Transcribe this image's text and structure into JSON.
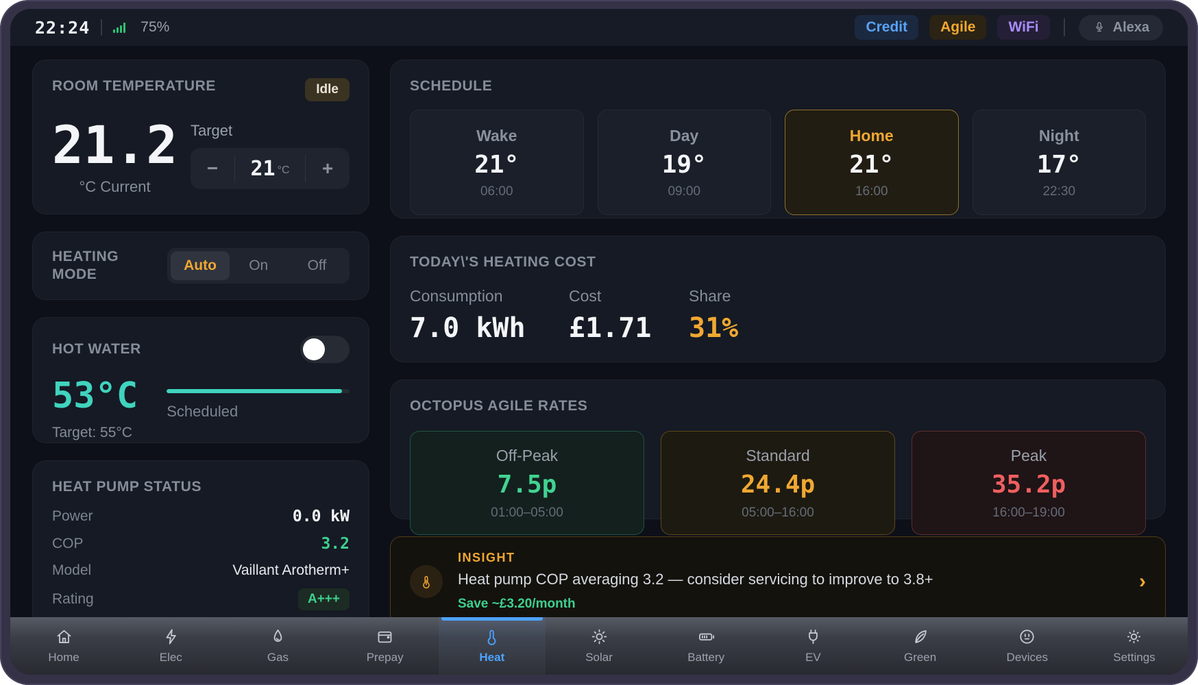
{
  "status_bar": {
    "time": "22:24",
    "battery": "75%",
    "badges": [
      {
        "label": "Credit"
      },
      {
        "label": "Agile"
      },
      {
        "label": "WiFi"
      }
    ],
    "voice_assistant": "Alexa"
  },
  "room_temperature": {
    "title": "ROOM TEMPERATURE",
    "status": "Idle",
    "current": "21.2",
    "current_unit": "°C Current",
    "target_label": "Target",
    "decrease": "−",
    "target_value": "21",
    "target_unit": "°C",
    "increase": "+"
  },
  "heating_mode": {
    "title": "HEATING MODE",
    "options": [
      {
        "label": "Auto",
        "selected": true
      },
      {
        "label": "On",
        "selected": false
      },
      {
        "label": "Off",
        "selected": false
      }
    ]
  },
  "hot_water": {
    "title": "HOT WATER",
    "current": "53°C",
    "status": "Scheduled",
    "target": "Target: 55°C",
    "progress_pct": 96
  },
  "heat_pump": {
    "title": "HEAT PUMP STATUS",
    "rows": [
      {
        "label": "Power",
        "value": "0.0 kW"
      },
      {
        "label": "COP",
        "value": "3.2"
      },
      {
        "label": "Model",
        "value": "Vaillant Arotherm+"
      },
      {
        "label": "Rating",
        "value": "A+++"
      }
    ]
  },
  "schedule": {
    "title": "SCHEDULE",
    "slots": [
      {
        "name": "Wake",
        "temp": "21°",
        "time": "06:00",
        "active": false
      },
      {
        "name": "Day",
        "temp": "19°",
        "time": "09:00",
        "active": false
      },
      {
        "name": "Home",
        "temp": "21°",
        "time": "16:00",
        "active": true
      },
      {
        "name": "Night",
        "temp": "17°",
        "time": "22:30",
        "active": false
      }
    ]
  },
  "heating_cost": {
    "title": "TODAY\\'S HEATING COST",
    "metrics": [
      {
        "label": "Consumption",
        "value": "7.0 kWh",
        "tone": "white"
      },
      {
        "label": "Cost",
        "value": "£1.71",
        "tone": "white"
      },
      {
        "label": "Share",
        "value": "31%",
        "tone": "amber"
      }
    ]
  },
  "agile_rates": {
    "title": "OCTOPUS AGILE RATES",
    "rates": [
      {
        "name": "Off-Peak",
        "price": "7.5p",
        "window": "01:00–05:00",
        "tone": "green"
      },
      {
        "name": "Standard",
        "price": "24.4p",
        "window": "05:00–16:00",
        "tone": "amber"
      },
      {
        "name": "Peak",
        "price": "35.2p",
        "window": "16:00–19:00",
        "tone": "red"
      }
    ]
  },
  "insight": {
    "label": "INSIGHT",
    "message": "Heat pump COP averaging 3.2 — consider servicing to improve to 3.8+",
    "saving": "Save ~£3.20/month",
    "chevron": "›"
  },
  "tab_bar": {
    "tabs": [
      {
        "label": "Home",
        "icon": "home-icon",
        "active": false
      },
      {
        "label": "Elec",
        "icon": "bolt-icon",
        "active": false
      },
      {
        "label": "Gas",
        "icon": "flame-icon",
        "active": false
      },
      {
        "label": "Prepay",
        "icon": "card-icon",
        "active": false
      },
      {
        "label": "Heat",
        "icon": "thermometer-icon",
        "active": true
      },
      {
        "label": "Solar",
        "icon": "sun-icon",
        "active": false
      },
      {
        "label": "Battery",
        "icon": "battery-icon",
        "active": false
      },
      {
        "label": "EV",
        "icon": "plug-icon",
        "active": false
      },
      {
        "label": "Green",
        "icon": "leaf-icon",
        "active": false
      },
      {
        "label": "Devices",
        "icon": "devices-icon",
        "active": false
      },
      {
        "label": "Settings",
        "icon": "settings-icon",
        "active": false
      }
    ]
  },
  "colors": {
    "accent_blue": "#4da3ff",
    "accent_amber": "#f0a832",
    "accent_teal": "#40d3be",
    "accent_green": "#3ecf8e",
    "accent_red": "#f05f5f",
    "accent_purple": "#a78bfa"
  }
}
